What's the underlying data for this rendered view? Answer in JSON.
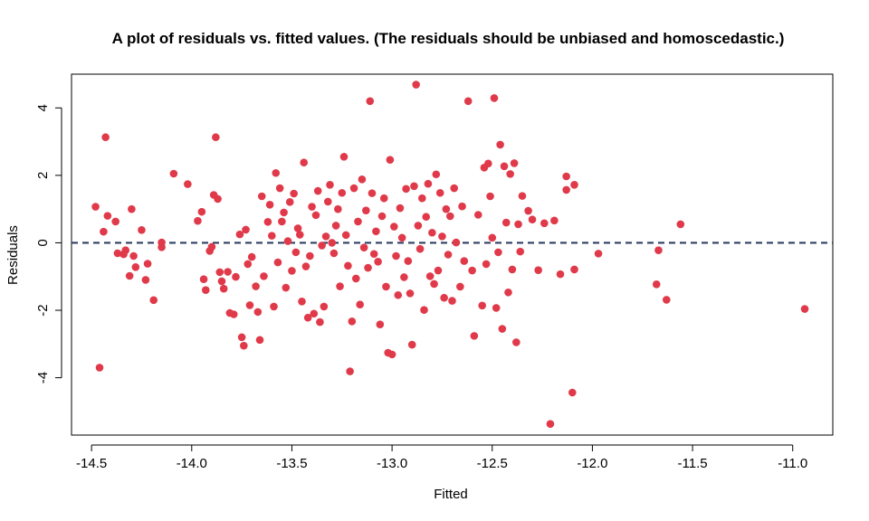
{
  "chart_data": {
    "type": "scatter",
    "title": "A plot of residuals vs. fitted values. (The residuals should be unbiased and homoscedastic.)",
    "xlabel": "Fitted",
    "ylabel": "Residuals",
    "xlim": [
      -14.6,
      -10.8
    ],
    "ylim": [
      -5.7,
      5.0
    ],
    "x_ticks": [
      -14.5,
      -14.0,
      -13.5,
      -13.0,
      -12.5,
      -12.0,
      -11.5,
      -11.0
    ],
    "x_tick_labels": [
      "-14.5",
      "-14.0",
      "-13.5",
      "-13.0",
      "-12.5",
      "-12.0",
      "-11.5",
      "-11.0"
    ],
    "y_ticks": [
      -4,
      -2,
      0,
      2,
      4
    ],
    "y_tick_labels": [
      "-4",
      "-2",
      "0",
      "2",
      "4"
    ],
    "reference_line": {
      "y": 0,
      "style": "dashed",
      "color": "#2f3f63"
    },
    "point_color": "#e03a4a",
    "grid": false,
    "series": [
      {
        "points": [
          [
            -14.48,
            1.07
          ],
          [
            -14.46,
            -3.7
          ],
          [
            -14.43,
            3.13
          ],
          [
            -14.42,
            0.8
          ],
          [
            -14.44,
            0.33
          ],
          [
            -14.38,
            0.63
          ],
          [
            -14.37,
            -0.31
          ],
          [
            -14.34,
            -0.34
          ],
          [
            -14.33,
            -0.22
          ],
          [
            -14.31,
            -0.98
          ],
          [
            -14.3,
            1.0
          ],
          [
            -14.29,
            -0.39
          ],
          [
            -14.28,
            -0.72
          ],
          [
            -14.25,
            0.38
          ],
          [
            -14.23,
            -1.1
          ],
          [
            -14.22,
            -0.62
          ],
          [
            -14.19,
            -1.7
          ],
          [
            -14.15,
            0.01
          ],
          [
            -14.15,
            -0.13
          ],
          [
            -14.09,
            2.05
          ],
          [
            -14.02,
            1.74
          ],
          [
            -13.97,
            0.65
          ],
          [
            -13.95,
            0.92
          ],
          [
            -13.94,
            -1.08
          ],
          [
            -13.93,
            -1.4
          ],
          [
            -13.91,
            -0.24
          ],
          [
            -13.9,
            -0.12
          ],
          [
            -13.89,
            1.42
          ],
          [
            -13.88,
            3.13
          ],
          [
            -13.87,
            1.3
          ],
          [
            -13.86,
            -0.87
          ],
          [
            -13.85,
            -1.14
          ],
          [
            -13.84,
            -1.36
          ],
          [
            -13.82,
            -0.86
          ],
          [
            -13.81,
            -2.08
          ],
          [
            -13.79,
            -2.12
          ],
          [
            -13.78,
            -1.01
          ],
          [
            -13.76,
            0.25
          ],
          [
            -13.75,
            -2.8
          ],
          [
            -13.74,
            -3.05
          ],
          [
            -13.73,
            0.39
          ],
          [
            -13.72,
            -0.63
          ],
          [
            -13.71,
            -1.85
          ],
          [
            -13.7,
            -0.42
          ],
          [
            -13.68,
            -1.29
          ],
          [
            -13.67,
            -2.05
          ],
          [
            -13.66,
            -2.88
          ],
          [
            -13.65,
            1.38
          ],
          [
            -13.64,
            -0.99
          ],
          [
            -13.62,
            0.62
          ],
          [
            -13.61,
            1.13
          ],
          [
            -13.6,
            0.21
          ],
          [
            -13.59,
            -1.89
          ],
          [
            -13.58,
            2.07
          ],
          [
            -13.57,
            -0.58
          ],
          [
            -13.56,
            1.62
          ],
          [
            -13.55,
            0.63
          ],
          [
            -13.54,
            0.9
          ],
          [
            -13.53,
            -1.33
          ],
          [
            -13.52,
            0.05
          ],
          [
            -13.51,
            1.21
          ],
          [
            -13.5,
            -0.83
          ],
          [
            -13.49,
            1.46
          ],
          [
            -13.48,
            -0.28
          ],
          [
            -13.47,
            0.43
          ],
          [
            -13.46,
            0.24
          ],
          [
            -13.45,
            -1.74
          ],
          [
            -13.44,
            2.38
          ],
          [
            -13.43,
            -0.7
          ],
          [
            -13.42,
            -2.22
          ],
          [
            -13.41,
            -0.39
          ],
          [
            -13.4,
            1.07
          ],
          [
            -13.39,
            -2.1
          ],
          [
            -13.38,
            0.82
          ],
          [
            -13.37,
            1.54
          ],
          [
            -13.36,
            -2.35
          ],
          [
            -13.35,
            -0.08
          ],
          [
            -13.34,
            -1.89
          ],
          [
            -13.33,
            0.19
          ],
          [
            -13.32,
            1.22
          ],
          [
            -13.31,
            1.72
          ],
          [
            -13.3,
            0.0
          ],
          [
            -13.29,
            -0.31
          ],
          [
            -13.28,
            0.51
          ],
          [
            -13.27,
            1.0
          ],
          [
            -13.26,
            -1.29
          ],
          [
            -13.25,
            1.48
          ],
          [
            -13.24,
            2.55
          ],
          [
            -13.23,
            0.23
          ],
          [
            -13.22,
            -0.68
          ],
          [
            -13.21,
            -3.81
          ],
          [
            -13.2,
            -2.33
          ],
          [
            -13.19,
            1.62
          ],
          [
            -13.18,
            -1.06
          ],
          [
            -13.17,
            0.63
          ],
          [
            -13.16,
            -1.83
          ],
          [
            -13.15,
            1.88
          ],
          [
            -13.14,
            -0.14
          ],
          [
            -13.13,
            0.96
          ],
          [
            -13.12,
            -0.74
          ],
          [
            -13.11,
            4.2
          ],
          [
            -13.1,
            1.47
          ],
          [
            -13.09,
            -0.33
          ],
          [
            -13.08,
            0.34
          ],
          [
            -13.07,
            -0.56
          ],
          [
            -13.06,
            -2.42
          ],
          [
            -13.05,
            0.79
          ],
          [
            -13.04,
            1.32
          ],
          [
            -13.03,
            -1.3
          ],
          [
            -13.02,
            -3.26
          ],
          [
            -13.01,
            2.46
          ],
          [
            -13.0,
            -3.31
          ],
          [
            -12.99,
            0.48
          ],
          [
            -12.98,
            -0.39
          ],
          [
            -12.97,
            -1.55
          ],
          [
            -12.96,
            1.03
          ],
          [
            -12.95,
            0.15
          ],
          [
            -12.94,
            -1.02
          ],
          [
            -12.93,
            1.6
          ],
          [
            -12.92,
            -0.54
          ],
          [
            -12.91,
            -1.5
          ],
          [
            -12.9,
            -3.02
          ],
          [
            -12.89,
            1.68
          ],
          [
            -12.88,
            4.69
          ],
          [
            -12.87,
            0.51
          ],
          [
            -12.86,
            -0.18
          ],
          [
            -12.85,
            1.32
          ],
          [
            -12.84,
            -1.99
          ],
          [
            -12.83,
            0.77
          ],
          [
            -12.82,
            1.75
          ],
          [
            -12.81,
            -0.99
          ],
          [
            -12.8,
            0.3
          ],
          [
            -12.79,
            -1.22
          ],
          [
            -12.78,
            2.03
          ],
          [
            -12.77,
            -0.82
          ],
          [
            -12.76,
            1.48
          ],
          [
            -12.75,
            0.19
          ],
          [
            -12.74,
            -1.63
          ],
          [
            -12.73,
            1.0
          ],
          [
            -12.72,
            -0.35
          ],
          [
            -12.71,
            0.79
          ],
          [
            -12.7,
            -1.72
          ],
          [
            -12.69,
            1.62
          ],
          [
            -12.68,
            0.01
          ],
          [
            -12.66,
            -1.3
          ],
          [
            -12.65,
            1.08
          ],
          [
            -12.64,
            -0.54
          ],
          [
            -12.62,
            4.2
          ],
          [
            -12.6,
            -0.82
          ],
          [
            -12.59,
            -2.76
          ],
          [
            -12.57,
            0.83
          ],
          [
            -12.55,
            -1.86
          ],
          [
            -12.54,
            2.23
          ],
          [
            -12.53,
            -0.63
          ],
          [
            -12.52,
            2.35
          ],
          [
            -12.51,
            1.38
          ],
          [
            -12.5,
            0.15
          ],
          [
            -12.49,
            4.29
          ],
          [
            -12.48,
            -1.93
          ],
          [
            -12.47,
            -0.28
          ],
          [
            -12.46,
            2.91
          ],
          [
            -12.45,
            -2.55
          ],
          [
            -12.44,
            2.27
          ],
          [
            -12.43,
            0.6
          ],
          [
            -12.42,
            -1.47
          ],
          [
            -12.41,
            2.04
          ],
          [
            -12.4,
            -0.79
          ],
          [
            -12.39,
            2.36
          ],
          [
            -12.38,
            -2.95
          ],
          [
            -12.37,
            0.55
          ],
          [
            -12.36,
            -0.26
          ],
          [
            -12.35,
            1.39
          ],
          [
            -12.32,
            0.95
          ],
          [
            -12.3,
            0.69
          ],
          [
            -12.27,
            -0.81
          ],
          [
            -12.24,
            0.58
          ],
          [
            -12.21,
            -5.37
          ],
          [
            -12.19,
            0.66
          ],
          [
            -12.16,
            -0.93
          ],
          [
            -12.13,
            1.97
          ],
          [
            -12.13,
            1.57
          ],
          [
            -12.1,
            -4.44
          ],
          [
            -12.09,
            -0.79
          ],
          [
            -12.09,
            1.72
          ],
          [
            -11.97,
            -0.32
          ],
          [
            -11.68,
            -1.23
          ],
          [
            -11.67,
            -0.22
          ],
          [
            -11.63,
            -1.69
          ],
          [
            -11.56,
            0.55
          ],
          [
            -10.94,
            -1.96
          ]
        ]
      }
    ]
  }
}
